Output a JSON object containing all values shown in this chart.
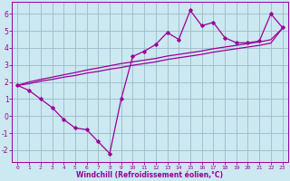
{
  "x_data": [
    0,
    1,
    2,
    3,
    4,
    5,
    6,
    7,
    8,
    9,
    10,
    11,
    12,
    13,
    14,
    15,
    16,
    17,
    18,
    19,
    20,
    21,
    22,
    23
  ],
  "y_main": [
    1.8,
    1.5,
    1.0,
    0.5,
    -0.2,
    -0.7,
    -0.8,
    -1.5,
    -2.2,
    1.0,
    3.5,
    3.8,
    4.2,
    4.9,
    4.5,
    6.2,
    5.3,
    5.5,
    4.6,
    4.3,
    4.3,
    4.4,
    6.0,
    5.2
  ],
  "y_line1": [
    1.8,
    1.9,
    2.05,
    2.15,
    2.28,
    2.38,
    2.52,
    2.62,
    2.75,
    2.85,
    2.98,
    3.08,
    3.18,
    3.32,
    3.42,
    3.52,
    3.62,
    3.75,
    3.85,
    3.95,
    4.05,
    4.15,
    4.28,
    5.15
  ],
  "y_line2": [
    1.8,
    2.0,
    2.15,
    2.28,
    2.42,
    2.55,
    2.7,
    2.82,
    2.95,
    3.08,
    3.18,
    3.28,
    3.38,
    3.52,
    3.62,
    3.72,
    3.82,
    3.95,
    4.05,
    4.15,
    4.25,
    4.35,
    4.48,
    5.15
  ],
  "color": "#990099",
  "bg_color": "#cce8f0",
  "grid_color": "#99bbcc",
  "xlim": [
    -0.5,
    23.5
  ],
  "ylim": [
    -2.7,
    6.7
  ],
  "yticks": [
    -2,
    -1,
    0,
    1,
    2,
    3,
    4,
    5,
    6
  ],
  "xticks": [
    0,
    1,
    2,
    3,
    4,
    5,
    6,
    7,
    8,
    9,
    10,
    11,
    12,
    13,
    14,
    15,
    16,
    17,
    18,
    19,
    20,
    21,
    22,
    23
  ],
  "xlabel": "Windchill (Refroidissement éolien,°C)"
}
